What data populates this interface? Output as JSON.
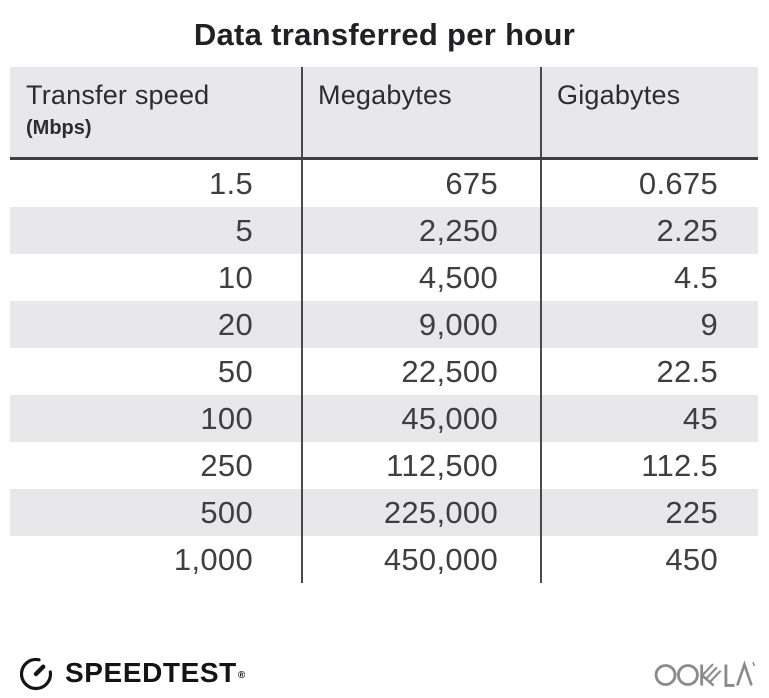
{
  "title": "Data transferred per hour",
  "table": {
    "columns": [
      {
        "label": "Transfer speed",
        "sublabel": "(Mbps)"
      },
      {
        "label": "Megabytes",
        "sublabel": ""
      },
      {
        "label": "Gigabytes",
        "sublabel": ""
      }
    ],
    "rows": [
      {
        "speed": "1.5",
        "megabytes": "675",
        "gigabytes": "0.675"
      },
      {
        "speed": "5",
        "megabytes": "2,250",
        "gigabytes": "2.25"
      },
      {
        "speed": "10",
        "megabytes": "4,500",
        "gigabytes": "4.5"
      },
      {
        "speed": "20",
        "megabytes": "9,000",
        "gigabytes": "9"
      },
      {
        "speed": "50",
        "megabytes": "22,500",
        "gigabytes": "22.5"
      },
      {
        "speed": "100",
        "megabytes": "45,000",
        "gigabytes": "45"
      },
      {
        "speed": "250",
        "megabytes": "112,500",
        "gigabytes": "112.5"
      },
      {
        "speed": "500",
        "megabytes": "225,000",
        "gigabytes": "225"
      },
      {
        "speed": "1,000",
        "megabytes": "450,000",
        "gigabytes": "450"
      }
    ]
  },
  "footer": {
    "speedtest": {
      "label": "SPEEDTEST",
      "trademark": "®",
      "icon": "speedtest-gauge-icon"
    },
    "ookla": {
      "label": "OOKLA",
      "icon": "ookla-wordmark"
    }
  },
  "colors": {
    "header_bg": "#e8e8eb",
    "stripe": "#e8e8eb",
    "divider": "#4a4a4d",
    "header_rule": "#3f3f42",
    "title_text": "#212124",
    "body_text": "#3f3f43",
    "speedtest_black": "#141414",
    "ookla_gray": "#8b8b8d"
  },
  "chart_data": {
    "type": "table",
    "title": "Data transferred per hour",
    "columns": [
      "Transfer speed (Mbps)",
      "Megabytes",
      "Gigabytes"
    ],
    "rows": [
      [
        1.5,
        675,
        0.675
      ],
      [
        5,
        2250,
        2.25
      ],
      [
        10,
        4500,
        4.5
      ],
      [
        20,
        9000,
        9
      ],
      [
        50,
        22500,
        22.5
      ],
      [
        100,
        45000,
        45
      ],
      [
        250,
        112500,
        112.5
      ],
      [
        500,
        225000,
        225
      ],
      [
        1000,
        450000,
        450
      ]
    ]
  }
}
